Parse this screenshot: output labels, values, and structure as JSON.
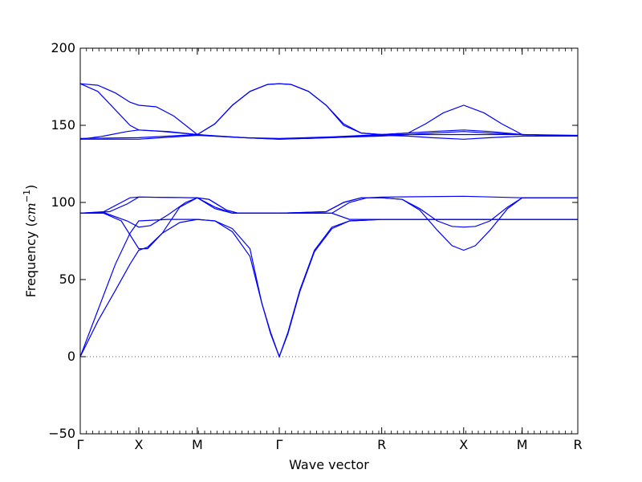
{
  "chart_data": {
    "type": "line",
    "title": "",
    "xlabel": "Wave vector",
    "ylabel_text": "Frequency (",
    "ylabel_unit": "cm",
    "ylabel_exponent": "−1",
    "ylabel_close": ")",
    "ylim": [
      -50,
      200
    ],
    "yticks": [
      -50,
      0,
      50,
      100,
      150,
      200
    ],
    "ytick_labels": [
      "−50",
      "0",
      "50",
      "100",
      "150",
      "200"
    ],
    "xlim": [
      0,
      8.5
    ],
    "kpoints": [
      {
        "label": "Γ",
        "x": 0
      },
      {
        "label": "X",
        "x": 1
      },
      {
        "label": "M",
        "x": 2
      },
      {
        "label": "Γ",
        "x": 3.4
      },
      {
        "label": "R",
        "x": 5.15
      },
      {
        "label": "X",
        "x": 6.55
      },
      {
        "label": "M",
        "x": 7.55
      },
      {
        "label": "R",
        "x": 8.5
      }
    ],
    "zero_line": {
      "y": 0,
      "style": "dotted"
    },
    "grid": false,
    "line_color": "#0000ff",
    "series": [
      {
        "points": [
          [
            0,
            0
          ],
          [
            0.3,
            23
          ],
          [
            0.6,
            43
          ],
          [
            0.85,
            60
          ],
          [
            1,
            69
          ],
          [
            1.15,
            71
          ],
          [
            1.4,
            80
          ],
          [
            1.7,
            87
          ],
          [
            2,
            89
          ],
          [
            2.3,
            88
          ],
          [
            2.6,
            83
          ],
          [
            2.9,
            70
          ],
          [
            3.1,
            35
          ],
          [
            3.25,
            15
          ],
          [
            3.4,
            0
          ],
          [
            3.55,
            15
          ],
          [
            3.75,
            42
          ],
          [
            4.0,
            68
          ],
          [
            4.3,
            83
          ],
          [
            4.6,
            88
          ],
          [
            5.15,
            89
          ],
          [
            5.8,
            89
          ],
          [
            6.55,
            89
          ],
          [
            7.2,
            89
          ],
          [
            7.55,
            89
          ],
          [
            8.5,
            89
          ]
        ]
      },
      {
        "points": [
          [
            0,
            0
          ],
          [
            0.3,
            30
          ],
          [
            0.6,
            60
          ],
          [
            0.85,
            80
          ],
          [
            1,
            88
          ],
          [
            1.5,
            89
          ],
          [
            2,
            89
          ],
          [
            2.3,
            88
          ],
          [
            2.6,
            81
          ],
          [
            2.9,
            65
          ],
          [
            3.1,
            35
          ],
          [
            3.25,
            16
          ],
          [
            3.4,
            0
          ],
          [
            3.55,
            16
          ],
          [
            3.75,
            43
          ],
          [
            4.0,
            69
          ],
          [
            4.3,
            84
          ],
          [
            4.6,
            88
          ],
          [
            5.15,
            89
          ],
          [
            5.8,
            89
          ],
          [
            6.55,
            89
          ],
          [
            7.55,
            89
          ],
          [
            8.5,
            89
          ]
        ]
      },
      {
        "points": [
          [
            0,
            93
          ],
          [
            0.4,
            93.5
          ],
          [
            0.8,
            88
          ],
          [
            1,
            84
          ],
          [
            1.2,
            85
          ],
          [
            1.5,
            92
          ],
          [
            1.8,
            100
          ],
          [
            2,
            103
          ],
          [
            2.2,
            102
          ],
          [
            2.5,
            95
          ],
          [
            2.7,
            93
          ],
          [
            3.4,
            93
          ],
          [
            4.2,
            94
          ],
          [
            4.5,
            100
          ],
          [
            4.8,
            103
          ],
          [
            5.15,
            103
          ],
          [
            5.5,
            102
          ],
          [
            5.8,
            96
          ],
          [
            6.1,
            88
          ],
          [
            6.35,
            84.5
          ],
          [
            6.55,
            84
          ],
          [
            6.75,
            84.5
          ],
          [
            7.0,
            88
          ],
          [
            7.3,
            97
          ],
          [
            7.55,
            103
          ],
          [
            8.5,
            103
          ]
        ]
      },
      {
        "points": [
          [
            0,
            93
          ],
          [
            0.4,
            93
          ],
          [
            0.7,
            88
          ],
          [
            1,
            70
          ],
          [
            1.15,
            70
          ],
          [
            1.4,
            80
          ],
          [
            1.7,
            97
          ],
          [
            2,
            103
          ],
          [
            2.2,
            102
          ],
          [
            2.5,
            95
          ],
          [
            2.7,
            93
          ],
          [
            3.4,
            93
          ],
          [
            4.2,
            94
          ],
          [
            4.5,
            100
          ],
          [
            4.8,
            103
          ],
          [
            5.15,
            103
          ],
          [
            5.5,
            102
          ],
          [
            5.8,
            95
          ],
          [
            6.1,
            82
          ],
          [
            6.35,
            72
          ],
          [
            6.55,
            69
          ],
          [
            6.75,
            72
          ],
          [
            7.0,
            82
          ],
          [
            7.3,
            96
          ],
          [
            7.55,
            103
          ],
          [
            8.5,
            103
          ]
        ]
      },
      {
        "points": [
          [
            0,
            93
          ],
          [
            0.4,
            94
          ],
          [
            0.7,
            100
          ],
          [
            0.85,
            103
          ],
          [
            1,
            103.5
          ],
          [
            2,
            103
          ],
          [
            2.3,
            97
          ],
          [
            2.6,
            93
          ],
          [
            3.4,
            93
          ],
          [
            4.3,
            93
          ],
          [
            4.6,
            89
          ],
          [
            5.15,
            89
          ],
          [
            6.55,
            89
          ],
          [
            7.55,
            89
          ],
          [
            8.5,
            89
          ]
        ]
      },
      {
        "points": [
          [
            0,
            93
          ],
          [
            0.5,
            94
          ],
          [
            0.8,
            99
          ],
          [
            1,
            103.5
          ],
          [
            2,
            103
          ],
          [
            2.3,
            96
          ],
          [
            2.6,
            93
          ],
          [
            3.4,
            93
          ],
          [
            4.3,
            93
          ],
          [
            4.6,
            100
          ],
          [
            4.9,
            103
          ],
          [
            5.15,
            103.5
          ],
          [
            6.55,
            104
          ],
          [
            7.55,
            103
          ],
          [
            8.5,
            103
          ]
        ]
      },
      {
        "points": [
          [
            0,
            177
          ],
          [
            0.3,
            176
          ],
          [
            0.6,
            171
          ],
          [
            0.85,
            165
          ],
          [
            1,
            163
          ],
          [
            1.3,
            162
          ],
          [
            1.6,
            156
          ],
          [
            2,
            144
          ],
          [
            2.3,
            151
          ],
          [
            2.6,
            163
          ],
          [
            2.9,
            172
          ],
          [
            3.2,
            176.5
          ],
          [
            3.4,
            177
          ],
          [
            3.6,
            176.5
          ],
          [
            3.9,
            172
          ],
          [
            4.2,
            163
          ],
          [
            4.5,
            151
          ],
          [
            4.8,
            145
          ],
          [
            5.15,
            144
          ],
          [
            5.6,
            145
          ],
          [
            5.9,
            151
          ],
          [
            6.2,
            158
          ],
          [
            6.55,
            163
          ],
          [
            6.9,
            158
          ],
          [
            7.2,
            151
          ],
          [
            7.55,
            144
          ],
          [
            8.5,
            143
          ]
        ]
      },
      {
        "points": [
          [
            0,
            177
          ],
          [
            0.3,
            172
          ],
          [
            0.6,
            160
          ],
          [
            0.85,
            150
          ],
          [
            1,
            147
          ],
          [
            1.4,
            146
          ],
          [
            2,
            144
          ],
          [
            2.3,
            151
          ],
          [
            2.6,
            163
          ],
          [
            2.9,
            172
          ],
          [
            3.2,
            176.5
          ],
          [
            3.4,
            177
          ],
          [
            3.6,
            176.5
          ],
          [
            3.9,
            172
          ],
          [
            4.2,
            163
          ],
          [
            4.5,
            150
          ],
          [
            4.8,
            145
          ],
          [
            5.15,
            144
          ],
          [
            5.6,
            145
          ],
          [
            6.0,
            146
          ],
          [
            6.55,
            147
          ],
          [
            7.0,
            146
          ],
          [
            7.55,
            144
          ],
          [
            8.5,
            143
          ]
        ]
      },
      {
        "points": [
          [
            0,
            141
          ],
          [
            0.4,
            143
          ],
          [
            0.8,
            146
          ],
          [
            1,
            147
          ],
          [
            1.5,
            146
          ],
          [
            2,
            144
          ],
          [
            2.3,
            143
          ],
          [
            2.8,
            142
          ],
          [
            3.4,
            141
          ],
          [
            4.2,
            142
          ],
          [
            5.15,
            143
          ],
          [
            5.6,
            144
          ],
          [
            6.0,
            145
          ],
          [
            6.55,
            146
          ],
          [
            7.0,
            145
          ],
          [
            7.55,
            144
          ],
          [
            8.5,
            143
          ]
        ]
      },
      {
        "points": [
          [
            0,
            141
          ],
          [
            1,
            141
          ],
          [
            2,
            143.5
          ],
          [
            2.8,
            142
          ],
          [
            3.4,
            141
          ],
          [
            4.3,
            142
          ],
          [
            5.15,
            143.5
          ],
          [
            5.6,
            143
          ],
          [
            6.0,
            142
          ],
          [
            6.55,
            141
          ],
          [
            7.0,
            142
          ],
          [
            7.55,
            143
          ],
          [
            8.5,
            143
          ]
        ]
      },
      {
        "points": [
          [
            0,
            141.5
          ],
          [
            1,
            142
          ],
          [
            2,
            144
          ],
          [
            2.8,
            142
          ],
          [
            3.4,
            141.5
          ],
          [
            4.3,
            142.5
          ],
          [
            5.15,
            144
          ],
          [
            5.8,
            144
          ],
          [
            6.55,
            144
          ],
          [
            7.55,
            144
          ],
          [
            8.5,
            143.5
          ]
        ]
      }
    ]
  }
}
